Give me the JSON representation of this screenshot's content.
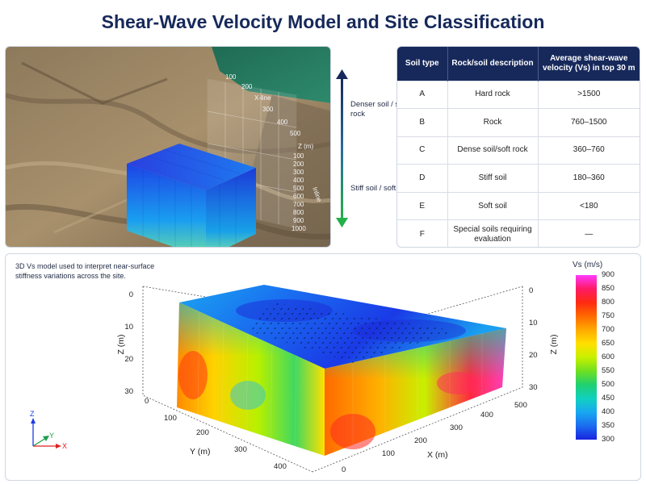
{
  "title": "Shear-Wave Velocity Model and Site Classification",
  "aerial": {
    "xline_label": "X-line",
    "xline_ticks": [
      "100",
      "200",
      "300",
      "400",
      "500"
    ],
    "depth_label": "Z (m)",
    "inline_label": "Inline",
    "inline_ticks": [
      "100",
      "200",
      "300",
      "400",
      "500",
      "600",
      "700",
      "800",
      "900",
      "1000"
    ]
  },
  "scale_arrow": {
    "top_label": "Denser soil / soft rock",
    "bottom_label": "Stiff soil / soft soil",
    "top_color": "#17295b",
    "bottom_color": "#22b04a"
  },
  "table": {
    "headers": [
      "Soil type",
      "Rock/soil description",
      "Average shear-wave velocity (Vs) in top 30 m"
    ],
    "rows": [
      [
        "A",
        "Hard rock",
        ">1500"
      ],
      [
        "B",
        "Rock",
        "760–1500"
      ],
      [
        "C",
        "Dense soil/soft rock",
        "360–760"
      ],
      [
        "D",
        "Stiff soil",
        "180–360"
      ],
      [
        "E",
        "Soft soil",
        "<180"
      ],
      [
        "F",
        "Special soils requiring evaluation",
        "—"
      ]
    ],
    "header_color": "#17295b"
  },
  "model": {
    "note": "3D Vs model used to interpret near-surface stiffness variations across the site.",
    "z_title": "Z (m)",
    "z_ticks": [
      "0",
      "10",
      "20",
      "30"
    ],
    "x_title": "X (m)",
    "x_ticks": [
      "0",
      "100",
      "200",
      "300",
      "400",
      "500"
    ],
    "y_title": "Y (m)",
    "y_ticks": [
      "0",
      "100",
      "200",
      "300",
      "400"
    ],
    "axes_triad": {
      "z": "Z",
      "y": "Y",
      "x": "X"
    },
    "colorbar": {
      "title": "Vs (m/s)",
      "ticks": [
        "900",
        "850",
        "800",
        "750",
        "700",
        "650",
        "600",
        "550",
        "500",
        "450",
        "400",
        "350",
        "300"
      ],
      "colors": [
        "#ff3bff",
        "#ff1a66",
        "#ff2a10",
        "#ff6a00",
        "#ffaa00",
        "#ffe000",
        "#c8f000",
        "#6fe020",
        "#1fd070",
        "#10d0c0",
        "#18a8f0",
        "#1a6cf0",
        "#1a24e0"
      ]
    }
  }
}
